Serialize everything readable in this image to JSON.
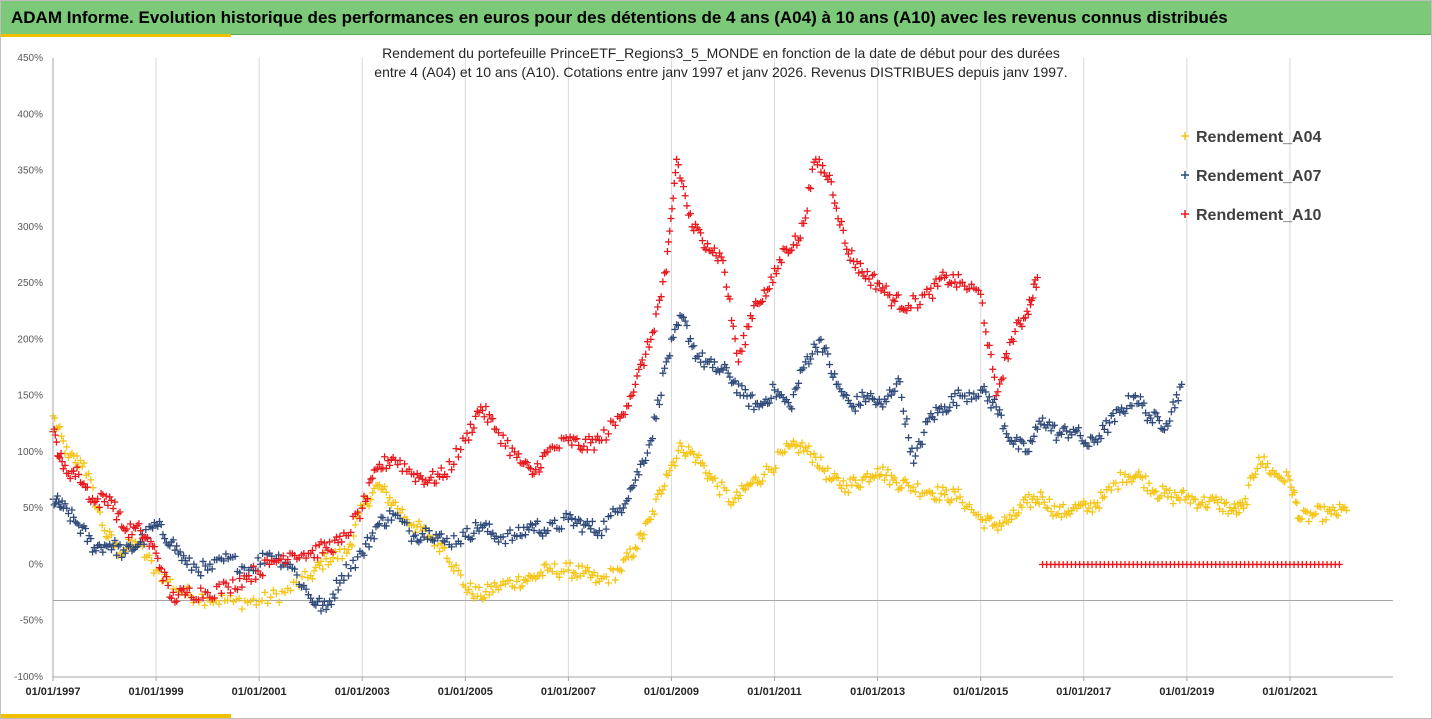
{
  "header": {
    "title": "ADAM Informe. Evolution historique des performances en euros pour des détentions de 4 ans (A04) à 10 ans (A10) avec les revenus connus distribués"
  },
  "colors": {
    "header_bg": "#7cc97a",
    "accent": "#f0c000",
    "A04": "#f5c518",
    "A07": "#2f4a7a",
    "A10": "#e8191d"
  },
  "chart_data": {
    "type": "scatter",
    "title_line1": "Rendement du portefeuille PrinceETF_Regions3_5_MONDE  en fonction de la date de début pour des durées",
    "title_line2": "entre 4 (A04) et 10 ans (A10). Cotations entre janv 1997 et janv 2026. Revenus DISTRIBUES depuis janv 1997.",
    "ylim": [
      -100,
      450
    ],
    "yticks": [
      -100,
      -50,
      0,
      50,
      100,
      150,
      200,
      250,
      300,
      350,
      400,
      450
    ],
    "ytick_labels": [
      "-100%",
      "-50%",
      "0%",
      "50%",
      "100%",
      "150%",
      "200%",
      "250%",
      "300%",
      "350%",
      "400%",
      "450%"
    ],
    "xlim": [
      1997.0,
      2023.0
    ],
    "xticks": [
      1997,
      1999,
      2001,
      2003,
      2005,
      2007,
      2009,
      2011,
      2013,
      2015,
      2017,
      2019,
      2021
    ],
    "xtick_labels": [
      "01/01/1997",
      "01/01/1999",
      "01/01/2001",
      "01/01/2003",
      "01/01/2005",
      "01/01/2007",
      "01/01/2009",
      "01/01/2011",
      "01/01/2013",
      "01/01/2015",
      "01/01/2017",
      "01/01/2019",
      "01/01/2021"
    ],
    "reference_line_y": -32,
    "marker": "+",
    "series": [
      {
        "name": "Rendement_A04",
        "color": "#f5c518",
        "x": [
          1997.0,
          1997.3,
          1997.6,
          1998.0,
          1998.3,
          1998.6,
          1999.0,
          1999.5,
          2000.0,
          2000.5,
          2001.0,
          2001.5,
          2002.0,
          2002.3,
          2002.7,
          2003.0,
          2003.3,
          2003.6,
          2004.0,
          2004.3,
          2004.6,
          2005.0,
          2005.3,
          2005.6,
          2006.0,
          2006.3,
          2006.6,
          2007.0,
          2007.3,
          2007.6,
          2008.0,
          2008.3,
          2008.6,
          2008.9,
          2009.2,
          2009.5,
          2009.8,
          2010.2,
          2010.5,
          2010.8,
          2011.2,
          2011.5,
          2011.8,
          2012.1,
          2012.4,
          2012.7,
          2013.0,
          2013.3,
          2013.6,
          2014.0,
          2014.3,
          2014.6,
          2015.0,
          2015.3,
          2015.6,
          2015.9,
          2016.2,
          2016.5,
          2016.8,
          2017.1,
          2017.4,
          2017.8,
          2018.1,
          2018.4,
          2018.7,
          2019.0,
          2019.3,
          2019.6,
          2019.9,
          2020.1,
          2020.4,
          2020.7,
          2021.0,
          2021.2,
          2021.5,
          2021.8,
          2022.1
        ],
        "values": [
          132,
          95,
          90,
          30,
          10,
          20,
          -5,
          -25,
          -30,
          -33,
          -33,
          -25,
          -10,
          5,
          10,
          50,
          70,
          55,
          35,
          25,
          15,
          -20,
          -28,
          -20,
          -15,
          -12,
          -5,
          -5,
          -8,
          -15,
          -5,
          15,
          40,
          80,
          105,
          95,
          75,
          55,
          70,
          80,
          100,
          105,
          95,
          75,
          70,
          75,
          85,
          75,
          70,
          65,
          62,
          60,
          40,
          35,
          40,
          55,
          60,
          45,
          50,
          50,
          60,
          80,
          78,
          65,
          60,
          60,
          55,
          55,
          48,
          50,
          95,
          80,
          75,
          40,
          45,
          45,
          48
        ]
      },
      {
        "name": "Rendement_A07",
        "color": "#2f4a7a",
        "x": [
          1997.0,
          1997.2,
          1997.5,
          1997.8,
          1998.1,
          1998.4,
          1998.7,
          1999.0,
          1999.3,
          1999.6,
          2000.0,
          2000.4,
          2000.8,
          2001.2,
          2001.6,
          2002.0,
          2002.3,
          2002.6,
          2003.0,
          2003.3,
          2003.6,
          2004.0,
          2004.3,
          2004.6,
          2005.0,
          2005.3,
          2005.6,
          2006.0,
          2006.3,
          2006.6,
          2007.0,
          2007.3,
          2007.6,
          2008.0,
          2008.3,
          2008.6,
          2008.9,
          2009.2,
          2009.5,
          2009.8,
          2010.1,
          2010.4,
          2010.7,
          2011.0,
          2011.3,
          2011.6,
          2011.9,
          2012.2,
          2012.5,
          2012.8,
          2013.1,
          2013.4,
          2013.7,
          2014.0,
          2014.3,
          2014.6,
          2015.0,
          2015.3,
          2015.6,
          2015.9,
          2016.2,
          2016.5,
          2016.8,
          2017.1,
          2017.4,
          2017.7,
          2018.0,
          2018.3,
          2018.6,
          2018.9
        ],
        "values": [
          58,
          50,
          35,
          15,
          18,
          10,
          20,
          35,
          20,
          0,
          -5,
          5,
          -5,
          10,
          0,
          -30,
          -40,
          -10,
          10,
          35,
          45,
          25,
          30,
          20,
          25,
          35,
          25,
          25,
          35,
          30,
          40,
          35,
          30,
          50,
          75,
          110,
          180,
          220,
          185,
          175,
          170,
          150,
          140,
          155,
          140,
          180,
          200,
          160,
          140,
          150,
          140,
          165,
          90,
          130,
          140,
          150,
          155,
          140,
          110,
          100,
          130,
          115,
          120,
          105,
          120,
          135,
          150,
          130,
          125,
          160
        ]
      },
      {
        "name": "Rendement_A10",
        "color": "#e8191d",
        "x": [
          1997.0,
          1997.2,
          1997.5,
          1997.8,
          1998.1,
          1998.4,
          1998.7,
          1999.0,
          1999.3,
          1999.6,
          2000.0,
          2000.4,
          2000.8,
          2001.2,
          2001.6,
          2002.0,
          2002.3,
          2002.6,
          2003.0,
          2003.3,
          2003.6,
          2004.0,
          2004.3,
          2004.6,
          2005.0,
          2005.3,
          2005.6,
          2006.0,
          2006.3,
          2006.6,
          2007.0,
          2007.3,
          2007.6,
          2008.0,
          2008.3,
          2008.6,
          2008.9,
          2009.1,
          2009.4,
          2009.7,
          2010.0,
          2010.3,
          2010.6,
          2010.9,
          2011.2,
          2011.5,
          2011.8,
          2012.1,
          2012.4,
          2012.7,
          2013.0,
          2013.3,
          2013.6,
          2014.0,
          2014.3,
          2014.6,
          2015.0,
          2015.3,
          2015.6,
          2015.9,
          2016.1
        ],
        "values": [
          118,
          85,
          80,
          55,
          60,
          30,
          30,
          10,
          -30,
          -25,
          -25,
          -20,
          -10,
          0,
          10,
          10,
          15,
          20,
          50,
          85,
          95,
          80,
          75,
          80,
          110,
          140,
          120,
          95,
          80,
          100,
          110,
          105,
          110,
          130,
          160,
          200,
          260,
          360,
          300,
          285,
          270,
          180,
          230,
          245,
          280,
          290,
          360,
          340,
          280,
          260,
          250,
          235,
          230,
          240,
          255,
          250,
          240,
          150,
          200,
          225,
          255
        ]
      }
    ],
    "zero_band": {
      "series": "Rendement_A10",
      "from": 2016.2,
      "to": 2022.0,
      "value": 0
    }
  }
}
